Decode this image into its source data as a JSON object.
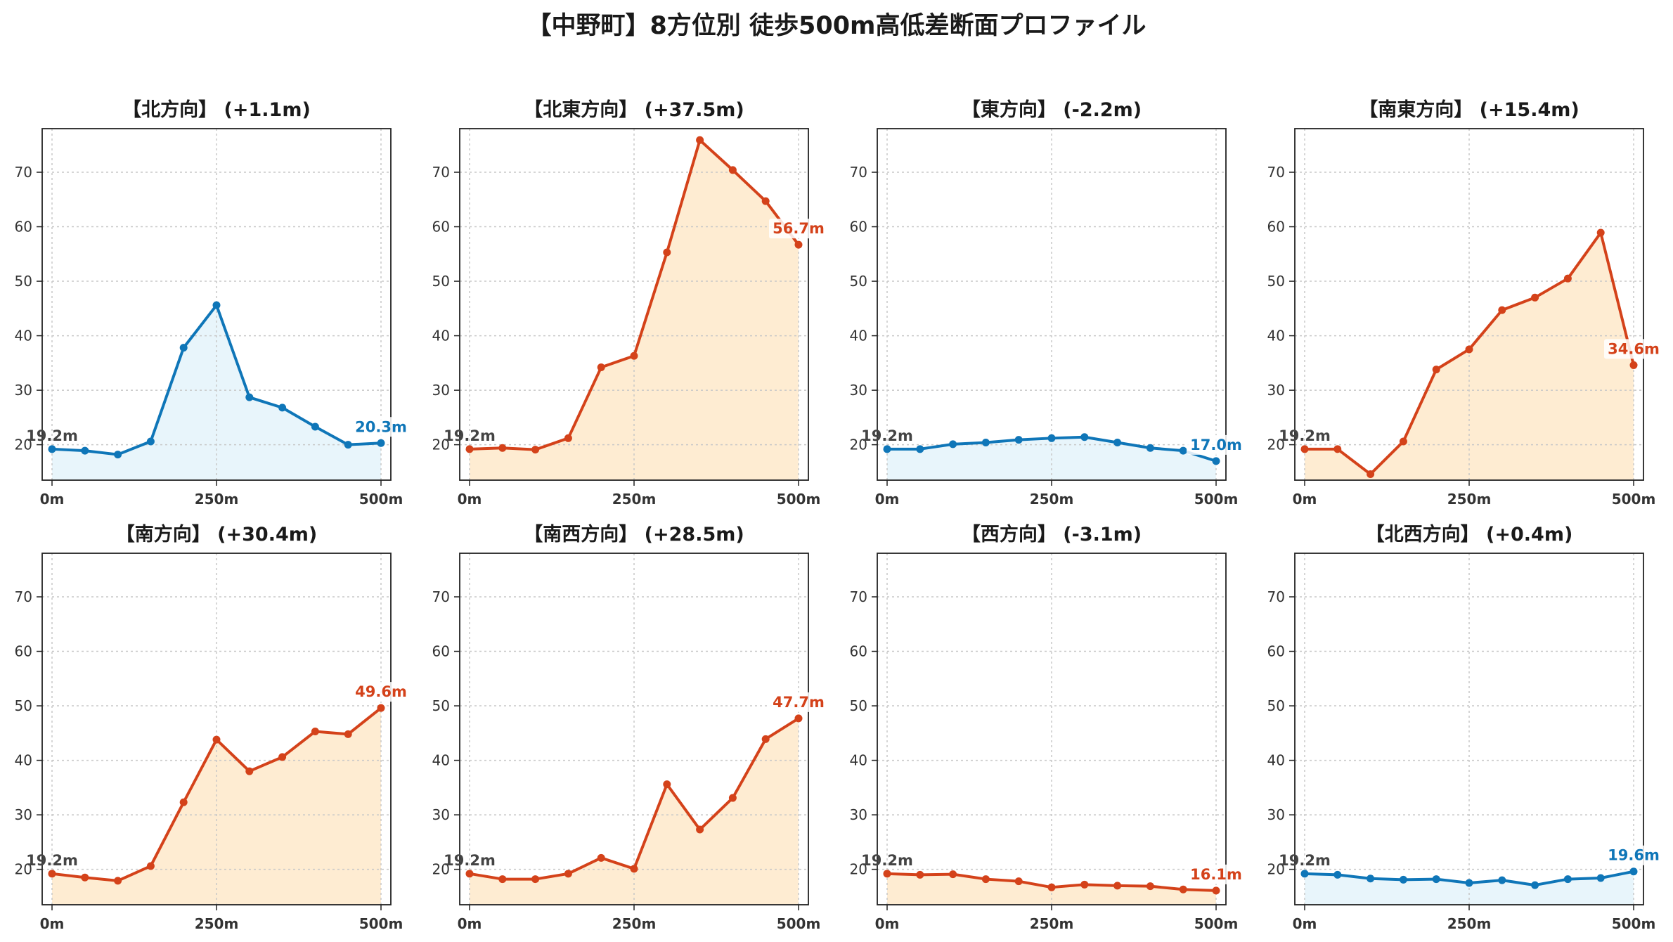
{
  "title": "【中野町】8方位別 徒歩500m高低差断面プロファイル",
  "colors": {
    "up_line": "#d4421a",
    "up_fill": "#feecd2",
    "down_line": "#0f76b8",
    "down_fill": "#e8f5fb",
    "grid": "#c8c8c8"
  },
  "chart_data": [
    {
      "type": "area",
      "title": "【北方向】 (+1.1m)",
      "trend": "up-small",
      "x": [
        0,
        50,
        100,
        150,
        200,
        250,
        300,
        350,
        400,
        450,
        500
      ],
      "values": [
        19.2,
        18.9,
        18.2,
        20.6,
        37.8,
        45.6,
        28.7,
        26.8,
        23.3,
        20.0,
        20.3
      ],
      "start_label": "19.2m",
      "end_label": "20.3m",
      "xticks": [
        "0m",
        "250m",
        "500m"
      ],
      "yticks": [
        20,
        30,
        40,
        50,
        60,
        70
      ],
      "ylim": [
        13.5,
        78
      ],
      "grid": true
    },
    {
      "type": "area",
      "title": "【北東方向】 (+37.5m)",
      "trend": "up",
      "x": [
        0,
        50,
        100,
        150,
        200,
        250,
        300,
        350,
        400,
        450,
        500
      ],
      "values": [
        19.2,
        19.4,
        19.1,
        21.2,
        34.2,
        36.3,
        55.3,
        75.9,
        70.4,
        64.7,
        56.7
      ],
      "start_label": "19.2m",
      "end_label": "56.7m",
      "xticks": [
        "0m",
        "250m",
        "500m"
      ],
      "yticks": [
        20,
        30,
        40,
        50,
        60,
        70
      ],
      "ylim": [
        13.5,
        78
      ],
      "grid": true
    },
    {
      "type": "area",
      "title": "【東方向】 (-2.2m)",
      "trend": "down",
      "x": [
        0,
        50,
        100,
        150,
        200,
        250,
        300,
        350,
        400,
        450,
        500
      ],
      "values": [
        19.2,
        19.2,
        20.1,
        20.4,
        20.9,
        21.2,
        21.4,
        20.4,
        19.4,
        18.9,
        17.0
      ],
      "start_label": "19.2m",
      "end_label": "17.0m",
      "xticks": [
        "0m",
        "250m",
        "500m"
      ],
      "yticks": [
        20,
        30,
        40,
        50,
        60,
        70
      ],
      "ylim": [
        13.5,
        78
      ],
      "grid": true
    },
    {
      "type": "area",
      "title": "【南東方向】 (+15.4m)",
      "trend": "up",
      "x": [
        0,
        50,
        100,
        150,
        200,
        250,
        300,
        350,
        400,
        450,
        500
      ],
      "values": [
        19.2,
        19.2,
        14.6,
        20.6,
        33.8,
        37.5,
        44.7,
        47.0,
        50.5,
        58.9,
        34.6
      ],
      "start_label": "19.2m",
      "end_label": "34.6m",
      "xticks": [
        "0m",
        "250m",
        "500m"
      ],
      "yticks": [
        20,
        30,
        40,
        50,
        60,
        70
      ],
      "ylim": [
        13.5,
        78
      ],
      "grid": true
    },
    {
      "type": "area",
      "title": "【南方向】 (+30.4m)",
      "trend": "up",
      "x": [
        0,
        50,
        100,
        150,
        200,
        250,
        300,
        350,
        400,
        450,
        500
      ],
      "values": [
        19.2,
        18.5,
        17.9,
        20.6,
        32.3,
        43.8,
        38.0,
        40.6,
        45.3,
        44.8,
        49.6
      ],
      "start_label": "19.2m",
      "end_label": "49.6m",
      "xticks": [
        "0m",
        "250m",
        "500m"
      ],
      "yticks": [
        20,
        30,
        40,
        50,
        60,
        70
      ],
      "ylim": [
        13.5,
        78
      ],
      "grid": true
    },
    {
      "type": "area",
      "title": "【南西方向】 (+28.5m)",
      "trend": "up",
      "x": [
        0,
        50,
        100,
        150,
        200,
        250,
        300,
        350,
        400,
        450,
        500
      ],
      "values": [
        19.2,
        18.2,
        18.2,
        19.2,
        22.1,
        20.1,
        35.6,
        27.3,
        33.1,
        43.9,
        47.7
      ],
      "start_label": "19.2m",
      "end_label": "47.7m",
      "xticks": [
        "0m",
        "250m",
        "500m"
      ],
      "yticks": [
        20,
        30,
        40,
        50,
        60,
        70
      ],
      "ylim": [
        13.5,
        78
      ],
      "grid": true
    },
    {
      "type": "area",
      "title": "【西方向】 (-3.1m)",
      "trend": "down-red",
      "x": [
        0,
        50,
        100,
        150,
        200,
        250,
        300,
        350,
        400,
        450,
        500
      ],
      "values": [
        19.2,
        19.0,
        19.1,
        18.2,
        17.8,
        16.7,
        17.2,
        17.0,
        16.9,
        16.3,
        16.1
      ],
      "start_label": "19.2m",
      "end_label": "16.1m",
      "xticks": [
        "0m",
        "250m",
        "500m"
      ],
      "yticks": [
        20,
        30,
        40,
        50,
        60,
        70
      ],
      "ylim": [
        13.5,
        78
      ],
      "grid": true
    },
    {
      "type": "area",
      "title": "【北西方向】 (+0.4m)",
      "trend": "flat",
      "x": [
        0,
        50,
        100,
        150,
        200,
        250,
        300,
        350,
        400,
        450,
        500
      ],
      "values": [
        19.2,
        19.0,
        18.3,
        18.1,
        18.2,
        17.5,
        18.0,
        17.1,
        18.2,
        18.4,
        19.6
      ],
      "start_label": "19.2m",
      "end_label": "19.6m",
      "xticks": [
        "0m",
        "250m",
        "500m"
      ],
      "yticks": [
        20,
        30,
        40,
        50,
        60,
        70
      ],
      "ylim": [
        13.5,
        78
      ],
      "grid": true
    }
  ]
}
